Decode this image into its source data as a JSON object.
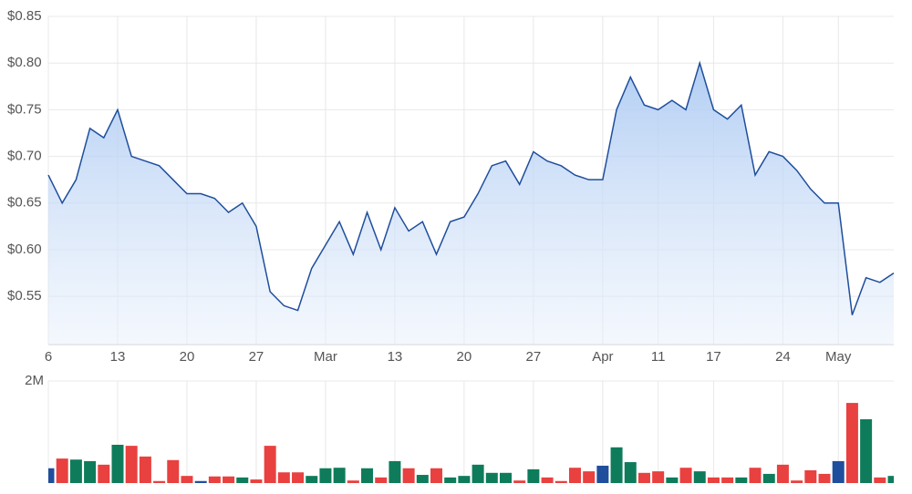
{
  "chart_data": [
    {
      "type": "area",
      "color": "#1f4e9c",
      "grid": true,
      "categories": [
        "6",
        null,
        null,
        null,
        null,
        "13",
        null,
        null,
        null,
        null,
        "20",
        null,
        null,
        null,
        null,
        "27",
        null,
        null,
        null,
        null,
        "Mar",
        null,
        null,
        null,
        null,
        "13",
        null,
        null,
        null,
        null,
        "20",
        null,
        null,
        null,
        null,
        "27",
        null,
        null,
        null,
        null,
        "Apr",
        null,
        null,
        null,
        "11",
        null,
        null,
        null,
        "17",
        null,
        null,
        null,
        null,
        "24",
        null,
        null,
        null,
        "May",
        null,
        null,
        null,
        null
      ],
      "values": [
        0.68,
        0.65,
        0.675,
        0.73,
        0.72,
        0.75,
        0.7,
        0.695,
        0.69,
        0.675,
        0.66,
        0.66,
        0.655,
        0.64,
        0.65,
        0.625,
        0.555,
        0.54,
        0.535,
        0.58,
        0.605,
        0.63,
        0.595,
        0.64,
        0.6,
        0.645,
        0.62,
        0.63,
        0.595,
        0.63,
        0.635,
        0.66,
        0.69,
        0.695,
        0.67,
        0.705,
        0.695,
        0.69,
        0.68,
        0.675,
        0.675,
        0.75,
        0.785,
        0.755,
        0.75,
        0.76,
        0.75,
        0.8,
        0.75,
        0.74,
        0.755,
        0.68,
        0.705,
        0.7,
        0.685,
        0.665,
        0.65,
        0.65,
        0.53,
        0.57,
        0.565,
        0.575
      ],
      "ylim": [
        0.4984,
        0.85
      ],
      "yticks": [
        {
          "value": 0.55,
          "label": "$0.55"
        },
        {
          "value": 0.6,
          "label": "$0.60"
        },
        {
          "value": 0.65,
          "label": "$0.65"
        },
        {
          "value": 0.7,
          "label": "$0.70"
        },
        {
          "value": 0.75,
          "label": "$0.75"
        },
        {
          "value": 0.8,
          "label": "$0.80"
        },
        {
          "value": 0.85,
          "label": "$0.85"
        }
      ]
    },
    {
      "type": "bar",
      "grid": true,
      "values": [
        290000,
        480000,
        460000,
        430000,
        360000,
        750000,
        730000,
        520000,
        40000,
        450000,
        140000,
        40000,
        130000,
        130000,
        110000,
        70000,
        730000,
        210000,
        210000,
        140000,
        290000,
        300000,
        50000,
        290000,
        110000,
        430000,
        290000,
        160000,
        290000,
        110000,
        140000,
        360000,
        200000,
        200000,
        50000,
        270000,
        110000,
        40000,
        300000,
        230000,
        340000,
        700000,
        410000,
        200000,
        230000,
        110000,
        300000,
        230000,
        110000,
        110000,
        110000,
        300000,
        180000,
        360000,
        50000,
        250000,
        180000,
        430000,
        1570000,
        1250000,
        110000,
        140000
      ],
      "colors": [
        "#1f4e9c",
        "#e8413f",
        "#0e7c5a",
        "#0e7c5a",
        "#e8413f",
        "#0e7c5a",
        "#e8413f",
        "#e8413f",
        "#e8413f",
        "#e8413f",
        "#e8413f",
        "#1f4e9c",
        "#e8413f",
        "#e8413f",
        "#0e7c5a",
        "#e8413f",
        "#e8413f",
        "#e8413f",
        "#e8413f",
        "#0e7c5a",
        "#0e7c5a",
        "#0e7c5a",
        "#e8413f",
        "#0e7c5a",
        "#e8413f",
        "#0e7c5a",
        "#e8413f",
        "#0e7c5a",
        "#e8413f",
        "#0e7c5a",
        "#0e7c5a",
        "#0e7c5a",
        "#0e7c5a",
        "#0e7c5a",
        "#e8413f",
        "#0e7c5a",
        "#e8413f",
        "#e8413f",
        "#e8413f",
        "#e8413f",
        "#1f4e9c",
        "#0e7c5a",
        "#0e7c5a",
        "#e8413f",
        "#e8413f",
        "#0e7c5a",
        "#e8413f",
        "#0e7c5a",
        "#e8413f",
        "#e8413f",
        "#0e7c5a",
        "#e8413f",
        "#0e7c5a",
        "#e8413f",
        "#e8413f",
        "#e8413f",
        "#e8413f",
        "#1f4e9c",
        "#e8413f",
        "#0e7c5a",
        "#e8413f",
        "#0e7c5a"
      ],
      "ylim": [
        0,
        2000000
      ],
      "yticks": [
        {
          "value": 2000000,
          "label": "2M"
        }
      ]
    }
  ]
}
